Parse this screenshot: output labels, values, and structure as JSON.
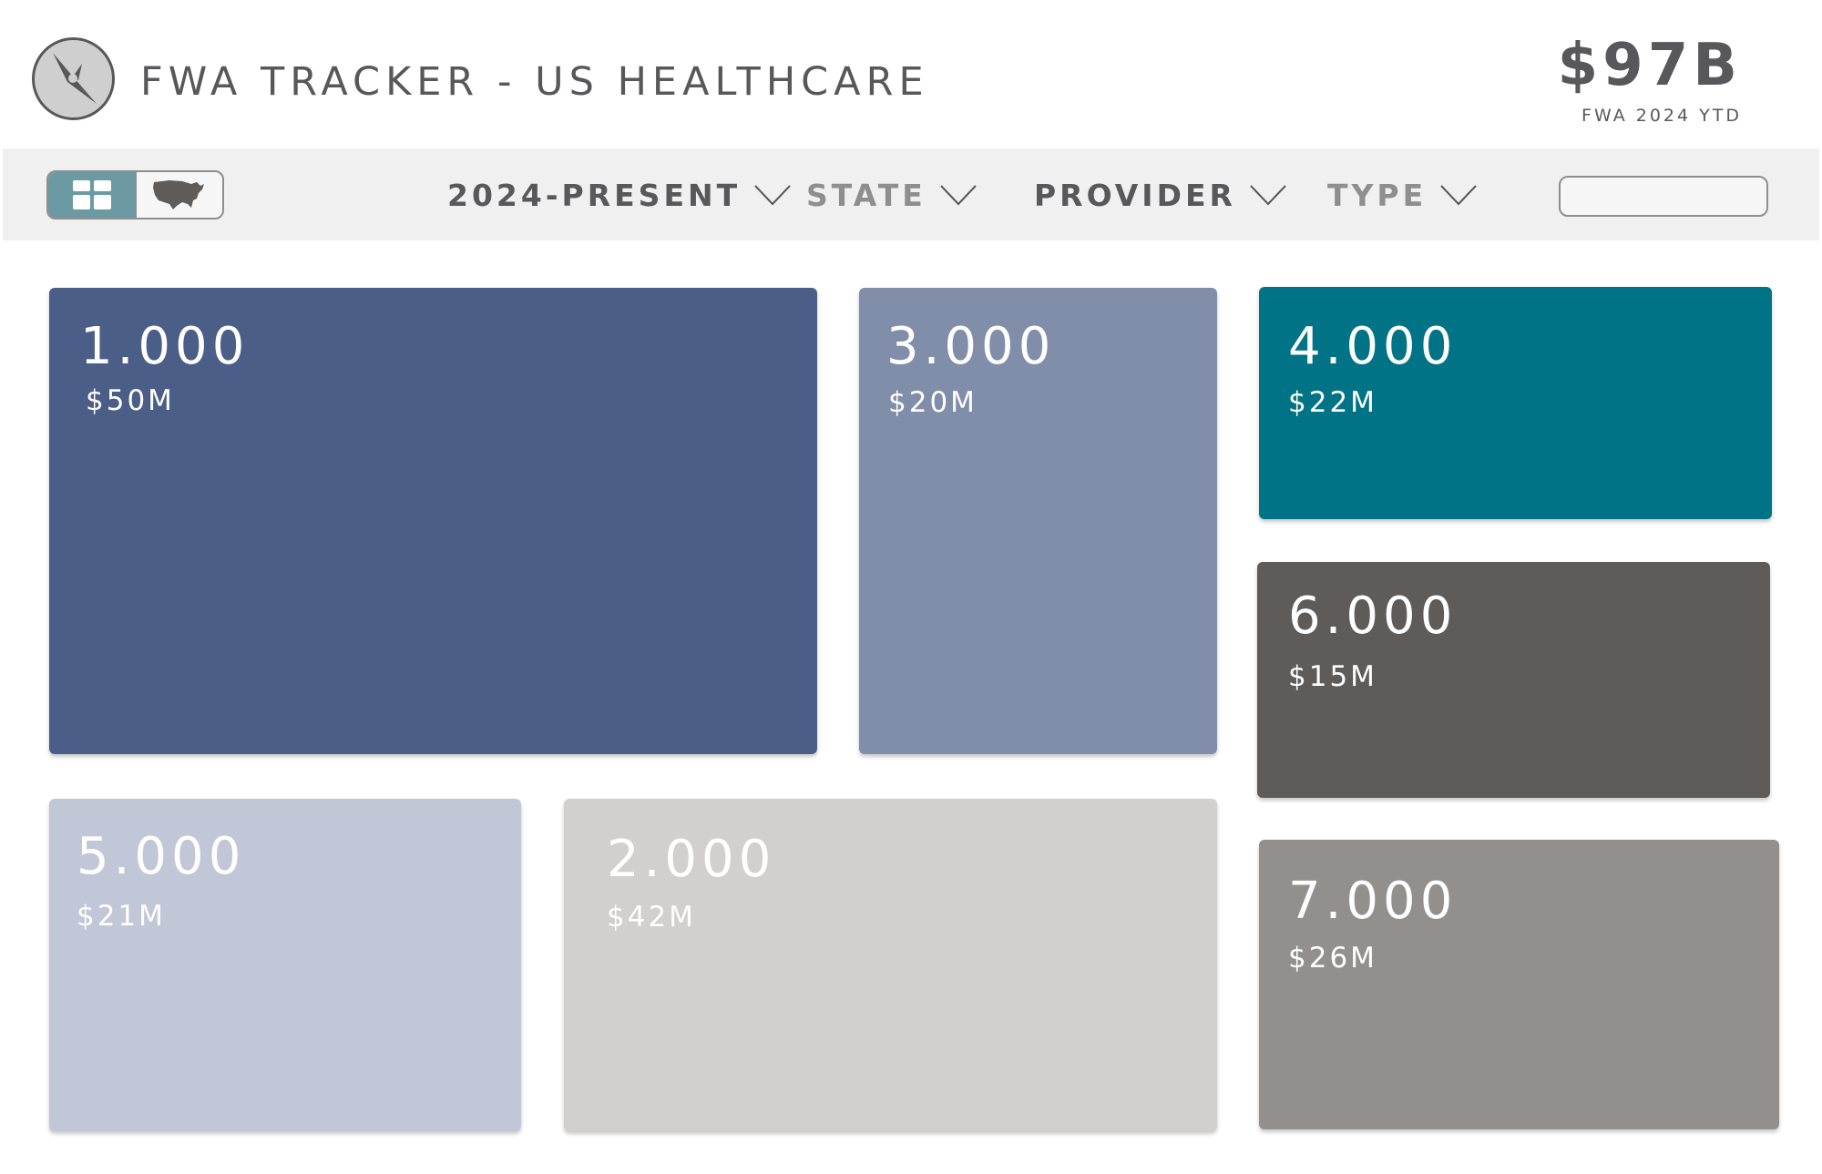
{
  "header": {
    "logo_icon": "compass-icon",
    "title": "FWA TRACKER - US HEALTHCARE",
    "kpi_value": "$97B",
    "kpi_label": "FWA 2024 YTD"
  },
  "toolbar": {
    "view_toggle": {
      "active": "grid",
      "options": [
        {
          "id": "grid",
          "icon": "grid-icon"
        },
        {
          "id": "map",
          "icon": "us-map-icon"
        }
      ]
    },
    "filters": [
      {
        "label": "2024-PRESENT",
        "color": "#58585a"
      },
      {
        "label": "STATE",
        "color": "#8e8e8e"
      },
      {
        "label": "PROVIDER",
        "color": "#58585a"
      },
      {
        "label": "TYPE",
        "color": "#8e8e8e"
      }
    ],
    "search": {
      "placeholder": "",
      "value": "",
      "icon": "search-icon"
    }
  },
  "tiles": [
    {
      "count": "1.000",
      "amount": "$50M",
      "color": "#4a5e87"
    },
    {
      "count": "3.000",
      "amount": "$20M",
      "color": "#808ea9"
    },
    {
      "count": "4.000",
      "amount": "$22M",
      "color": "#017386"
    },
    {
      "count": "6.000",
      "amount": "$15M",
      "color": "#5e5b59"
    },
    {
      "count": "5.000",
      "amount": "$21M",
      "color": "#c2c7d8"
    },
    {
      "count": "2.000",
      "amount": "$42M",
      "color": "#d1d0ce"
    },
    {
      "count": "7.000",
      "amount": "$26M",
      "color": "#938f8d"
    }
  ]
}
